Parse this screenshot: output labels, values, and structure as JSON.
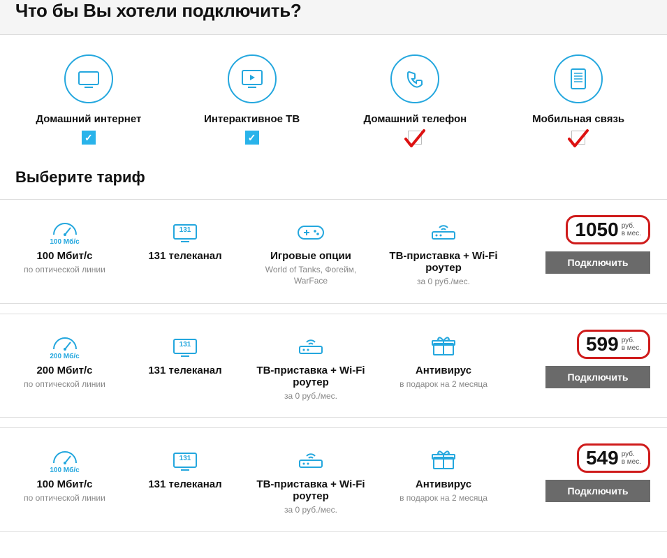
{
  "heading": "Что бы Вы хотели подключить?",
  "subheading": "Выберите тариф",
  "accent_color": "#24a7de",
  "highlight_border_color": "#cf1b1b",
  "button_bg": "#6a6a6a",
  "services": [
    {
      "label": "Домашний интернет",
      "checked": true,
      "hand_annot": false
    },
    {
      "label": "Интерактивное ТВ",
      "checked": true,
      "hand_annot": false
    },
    {
      "label": "Домашний телефон",
      "checked": false,
      "hand_annot": true
    },
    {
      "label": "Мобильная связь",
      "checked": false,
      "hand_annot": true
    }
  ],
  "plans": [
    {
      "speed_badge": "100 Мб/с",
      "speed_title": "100 Мбит/с",
      "speed_sub": "по оптической линии",
      "channels_badge": "131",
      "channels_title": "131 телеканал",
      "mid_title": "Игровые опции",
      "mid_sub": "World of Tanks, Фогейм, WarFace",
      "mid_icon": "gamepad",
      "gift_title": "ТВ-приставка + Wi-Fi роутер",
      "gift_sub": "за 0 руб./мес.",
      "gift_icon": "router",
      "price": "1050",
      "price_unit_top": "руб.",
      "price_unit_bot": "в мес.",
      "button": "Подключить"
    },
    {
      "speed_badge": "200 Мб/с",
      "speed_title": "200 Мбит/с",
      "speed_sub": "по оптической линии",
      "channels_badge": "131",
      "channels_title": "131 телеканал",
      "mid_title": "ТВ-приставка + Wi-Fi роутер",
      "mid_sub": "за 0 руб./мес.",
      "mid_icon": "router",
      "gift_title": "Антивирус",
      "gift_sub": "в подарок на 2 месяца",
      "gift_icon": "gift",
      "price": "599",
      "price_unit_top": "руб.",
      "price_unit_bot": "в мес.",
      "button": "Подключить"
    },
    {
      "speed_badge": "100 Мб/с",
      "speed_title": "100 Мбит/с",
      "speed_sub": "по оптической линии",
      "channels_badge": "131",
      "channels_title": "131 телеканал",
      "mid_title": "ТВ-приставка + Wi-Fi роутер",
      "mid_sub": "за 0 руб./мес.",
      "mid_icon": "router",
      "gift_title": "Антивирус",
      "gift_sub": "в подарок на 2 месяца",
      "gift_icon": "gift",
      "price": "549",
      "price_unit_top": "руб.",
      "price_unit_bot": "в мес.",
      "button": "Подключить"
    }
  ]
}
